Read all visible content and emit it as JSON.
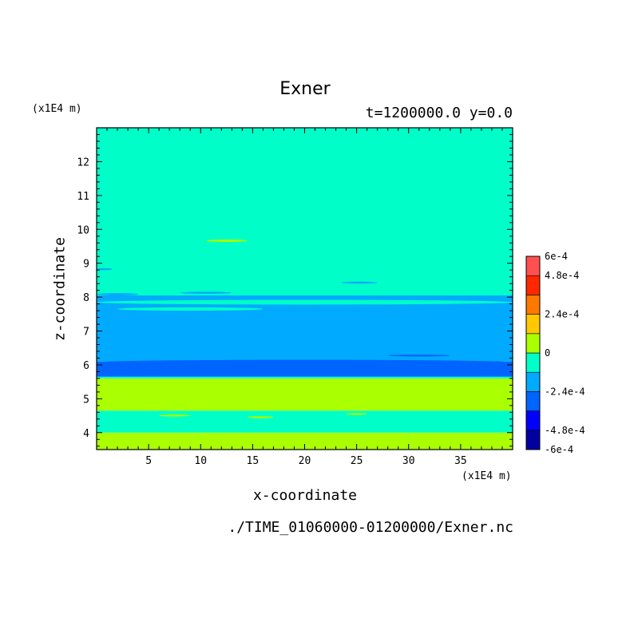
{
  "chart_data": {
    "type": "heatmap",
    "title": "Exner",
    "subtitle": "t=1200000.0 y=0.0",
    "xlabel": "x-coordinate",
    "ylabel": "z-coordinate",
    "x_unit": "(x1E4 m)",
    "y_unit": "(x1E4 m)",
    "footer": "./TIME_01060000-01200000/Exner.nc",
    "xlim": [
      0,
      40
    ],
    "ylim": [
      3.5,
      13
    ],
    "x_ticks": [
      5,
      10,
      15,
      20,
      25,
      30,
      35
    ],
    "y_ticks": [
      4,
      5,
      6,
      7,
      8,
      9,
      10,
      11,
      12
    ],
    "colorbar": {
      "levels": [
        -0.0006,
        -0.00048,
        -0.00036,
        -0.00024,
        -0.00012,
        0,
        0.00012,
        0.00024,
        0.00036,
        0.00048,
        0.0006
      ],
      "colors": [
        "#0000a0",
        "#0000ff",
        "#0064ff",
        "#00aaff",
        "#00ffc8",
        "#aaff00",
        "#ffc800",
        "#ff7800",
        "#ff2800",
        "#ff5050"
      ],
      "labels": [
        "6e-4",
        "4.8e-4",
        "2.4e-4",
        "0",
        "-2.4e-4",
        "-4.8e-4",
        "-6e-4"
      ],
      "label_values": [
        0.0006,
        0.00048,
        0.00024,
        0,
        -0.00024,
        -0.00048,
        -0.0006
      ]
    },
    "bands": [
      {
        "z0": 3.5,
        "z1": 4.0,
        "level_index": 5
      },
      {
        "z0": 4.0,
        "z1": 4.65,
        "level_index": 4
      },
      {
        "z0": 4.65,
        "z1": 5.6,
        "level_index": 5
      },
      {
        "z0": 5.6,
        "z1": 5.65,
        "level_index": 4
      },
      {
        "z0": 5.65,
        "z1": 6.1,
        "level_index": 2
      },
      {
        "z0": 6.1,
        "z1": 7.85,
        "level_index": 3
      },
      {
        "z0": 7.85,
        "z1": 8.05,
        "level_index": 3
      },
      {
        "z0": 8.05,
        "z1": 13.0,
        "level_index": 4
      }
    ],
    "patches": [
      {
        "x0": 0,
        "x1": 40,
        "z0": 7.78,
        "z1": 7.92,
        "level_index": 4
      },
      {
        "x0": 2,
        "x1": 16,
        "z0": 7.6,
        "z1": 7.7,
        "level_index": 4
      },
      {
        "x0": 0,
        "x1": 4,
        "z0": 8.05,
        "z1": 8.12,
        "level_index": 3
      },
      {
        "x0": 8,
        "x1": 13,
        "z0": 8.1,
        "z1": 8.16,
        "level_index": 3
      },
      {
        "x0": 23.5,
        "x1": 27,
        "z0": 8.4,
        "z1": 8.46,
        "level_index": 3
      },
      {
        "x0": 0,
        "x1": 1.5,
        "z0": 8.8,
        "z1": 8.85,
        "level_index": 3
      },
      {
        "x0": 10.5,
        "x1": 14.5,
        "z0": 9.63,
        "z1": 9.7,
        "level_index": 5
      },
      {
        "x0": 0,
        "x1": 40,
        "z0": 6.0,
        "z1": 6.15,
        "level_index": 2
      },
      {
        "x0": 28,
        "x1": 34,
        "z0": 6.25,
        "z1": 6.3,
        "level_index": 2
      },
      {
        "x0": 6,
        "x1": 9,
        "z0": 4.48,
        "z1": 4.53,
        "level_index": 5
      },
      {
        "x0": 14.5,
        "x1": 17,
        "z0": 4.43,
        "z1": 4.48,
        "level_index": 5
      },
      {
        "x0": 24,
        "x1": 26,
        "z0": 4.53,
        "z1": 4.57,
        "level_index": 5
      }
    ]
  }
}
